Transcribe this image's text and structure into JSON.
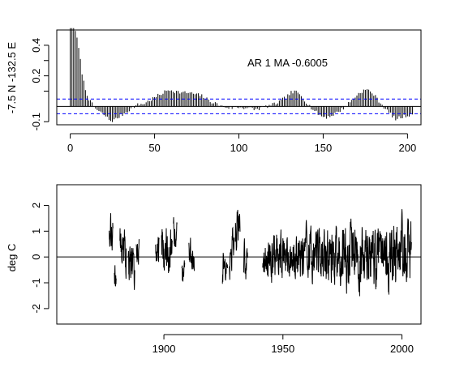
{
  "chart_data": [
    {
      "type": "bar",
      "ylabel": "-7.5 N -132.5 E",
      "annotation": "AR 1  MA -0.6005",
      "xlim": [
        -8,
        208
      ],
      "ylim": [
        -0.12,
        0.5
      ],
      "xticks": [
        0,
        50,
        100,
        150,
        200
      ],
      "xtick_labels": [
        "0",
        "50",
        "100",
        "150",
        "200"
      ],
      "yticks": [
        -0.1,
        0.2,
        0.4
      ],
      "ytick_labels": [
        "-0.1",
        "0.2",
        "0.4"
      ],
      "yticks_minor": [
        0.1,
        0.3
      ],
      "zero_line": 0,
      "confidence_band": [
        -0.048,
        0.048
      ],
      "band_color": "#0000ff",
      "grid": false,
      "lags_start": 0,
      "acf_anchors": [
        [
          0,
          1.0
        ],
        [
          1,
          0.62
        ],
        [
          2,
          0.58
        ],
        [
          3,
          0.5
        ],
        [
          4,
          0.44
        ],
        [
          5,
          0.38
        ],
        [
          6,
          0.3
        ],
        [
          7,
          0.22
        ],
        [
          8,
          0.16
        ],
        [
          9,
          0.11
        ],
        [
          10,
          0.08
        ],
        [
          11,
          0.05
        ],
        [
          12,
          0.03
        ],
        [
          14,
          0.0
        ],
        [
          16,
          -0.025
        ],
        [
          18,
          -0.04
        ],
        [
          20,
          -0.055
        ],
        [
          22,
          -0.075
        ],
        [
          24,
          -0.095
        ],
        [
          26,
          -0.09
        ],
        [
          28,
          -0.075
        ],
        [
          30,
          -0.06
        ],
        [
          32,
          -0.045
        ],
        [
          34,
          -0.03
        ],
        [
          36,
          -0.015
        ],
        [
          38,
          0.0
        ],
        [
          40,
          0.01
        ],
        [
          44,
          0.02
        ],
        [
          48,
          0.045
        ],
        [
          52,
          0.07
        ],
        [
          56,
          0.095
        ],
        [
          59,
          0.11
        ],
        [
          62,
          0.1
        ],
        [
          66,
          0.09
        ],
        [
          70,
          0.09
        ],
        [
          74,
          0.08
        ],
        [
          78,
          0.07
        ],
        [
          82,
          0.04
        ],
        [
          86,
          0.02
        ],
        [
          90,
          0.0
        ],
        [
          95,
          -0.01
        ],
        [
          100,
          -0.005
        ],
        [
          105,
          -0.01
        ],
        [
          110,
          -0.02
        ],
        [
          115,
          -0.005
        ],
        [
          120,
          0.01
        ],
        [
          124,
          0.03
        ],
        [
          128,
          0.06
        ],
        [
          131,
          0.09
        ],
        [
          134,
          0.095
        ],
        [
          137,
          0.07
        ],
        [
          140,
          0.03
        ],
        [
          143,
          -0.01
        ],
        [
          146,
          -0.04
        ],
        [
          149,
          -0.065
        ],
        [
          152,
          -0.07
        ],
        [
          155,
          -0.06
        ],
        [
          158,
          -0.04
        ],
        [
          161,
          -0.02
        ],
        [
          164,
          0.01
        ],
        [
          167,
          0.04
        ],
        [
          170,
          0.075
        ],
        [
          173,
          0.1
        ],
        [
          176,
          0.11
        ],
        [
          179,
          0.09
        ],
        [
          182,
          0.05
        ],
        [
          185,
          0.01
        ],
        [
          188,
          -0.03
        ],
        [
          191,
          -0.06
        ],
        [
          193,
          -0.085
        ],
        [
          195,
          -0.075
        ],
        [
          198,
          -0.065
        ],
        [
          200,
          -0.06
        ],
        [
          203,
          -0.045
        ]
      ],
      "acf_noise_amplitude": 0.012
    },
    {
      "type": "line",
      "ylabel": "deg C",
      "xlim": [
        1855,
        2008
      ],
      "ylim": [
        -2.6,
        2.8
      ],
      "xticks": [
        1900,
        1950,
        2000
      ],
      "xtick_labels": [
        "1900",
        "1950",
        "2000"
      ],
      "yticks": [
        -2,
        -1,
        0,
        1,
        2
      ],
      "ytick_labels": [
        "-2",
        "-1",
        "0",
        "1",
        "2"
      ],
      "zero_line": 0,
      "grid": false,
      "resolution": "monthly",
      "segments": [
        {
          "start": 1877.0,
          "end": 1878.6,
          "seed": 11,
          "amplitude": 0.9,
          "offset": 0.8
        },
        {
          "start": 1879.2,
          "end": 1880.0,
          "seed": 12,
          "amplitude": 0.6,
          "offset": -0.8
        },
        {
          "start": 1881.5,
          "end": 1884.2,
          "seed": 13,
          "amplitude": 0.9,
          "offset": 0.3
        },
        {
          "start": 1885.0,
          "end": 1887.8,
          "seed": 14,
          "amplitude": 0.9,
          "offset": -0.4
        },
        {
          "start": 1888.4,
          "end": 1889.6,
          "seed": 15,
          "amplitude": 0.6,
          "offset": 0.2
        },
        {
          "start": 1896.5,
          "end": 1898.0,
          "seed": 16,
          "amplitude": 0.7,
          "offset": 0.1
        },
        {
          "start": 1899.0,
          "end": 1903.5,
          "seed": 17,
          "amplitude": 0.9,
          "offset": 0.3
        },
        {
          "start": 1904.0,
          "end": 1905.5,
          "seed": 18,
          "amplitude": 0.6,
          "offset": 0.9
        },
        {
          "start": 1907.5,
          "end": 1908.8,
          "seed": 19,
          "amplitude": 0.5,
          "offset": -0.8
        },
        {
          "start": 1910.5,
          "end": 1912.8,
          "seed": 20,
          "amplitude": 0.7,
          "offset": 0.0
        },
        {
          "start": 1924.5,
          "end": 1926.8,
          "seed": 21,
          "amplitude": 0.7,
          "offset": -0.5
        },
        {
          "start": 1927.5,
          "end": 1929.5,
          "seed": 22,
          "amplitude": 0.8,
          "offset": 0.2
        },
        {
          "start": 1930.0,
          "end": 1932.0,
          "seed": 23,
          "amplitude": 0.8,
          "offset": 1.1
        },
        {
          "start": 1933.5,
          "end": 1935.2,
          "seed": 24,
          "amplitude": 0.7,
          "offset": -0.2
        },
        {
          "start": 1941.5,
          "end": 2004.0,
          "seed": 25,
          "amplitude": 1.1,
          "offset": 0.0
        }
      ],
      "series_color": "#000000"
    }
  ]
}
